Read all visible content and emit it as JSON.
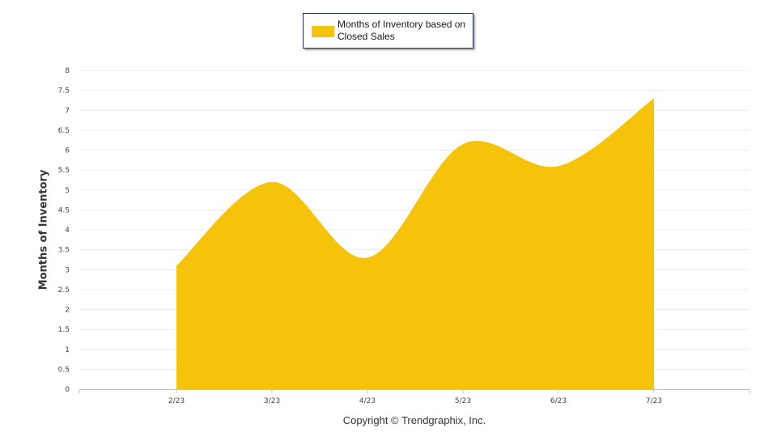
{
  "chart_data": {
    "type": "area",
    "categories": [
      "2/23",
      "3/23",
      "4/23",
      "5/23",
      "6/23",
      "7/23"
    ],
    "series": [
      {
        "name": "Months of Inventory based on Closed Sales",
        "values": [
          3.1,
          5.2,
          3.3,
          6.15,
          5.6,
          7.3
        ]
      }
    ],
    "ylabel": "Months of Inventory",
    "ylim": [
      0,
      8
    ],
    "yticks": [
      "0",
      "0.5",
      "1",
      "1.5",
      "2",
      "2.5",
      "3",
      "3.5",
      "4",
      "4.5",
      "5",
      "5.5",
      "6",
      "6.5",
      "7",
      "7.5",
      "8"
    ],
    "grid": true,
    "legend_position": "top-center",
    "color": "#f5c30a"
  },
  "footer": {
    "copyright": "Copyright © Trendgraphix, Inc."
  }
}
